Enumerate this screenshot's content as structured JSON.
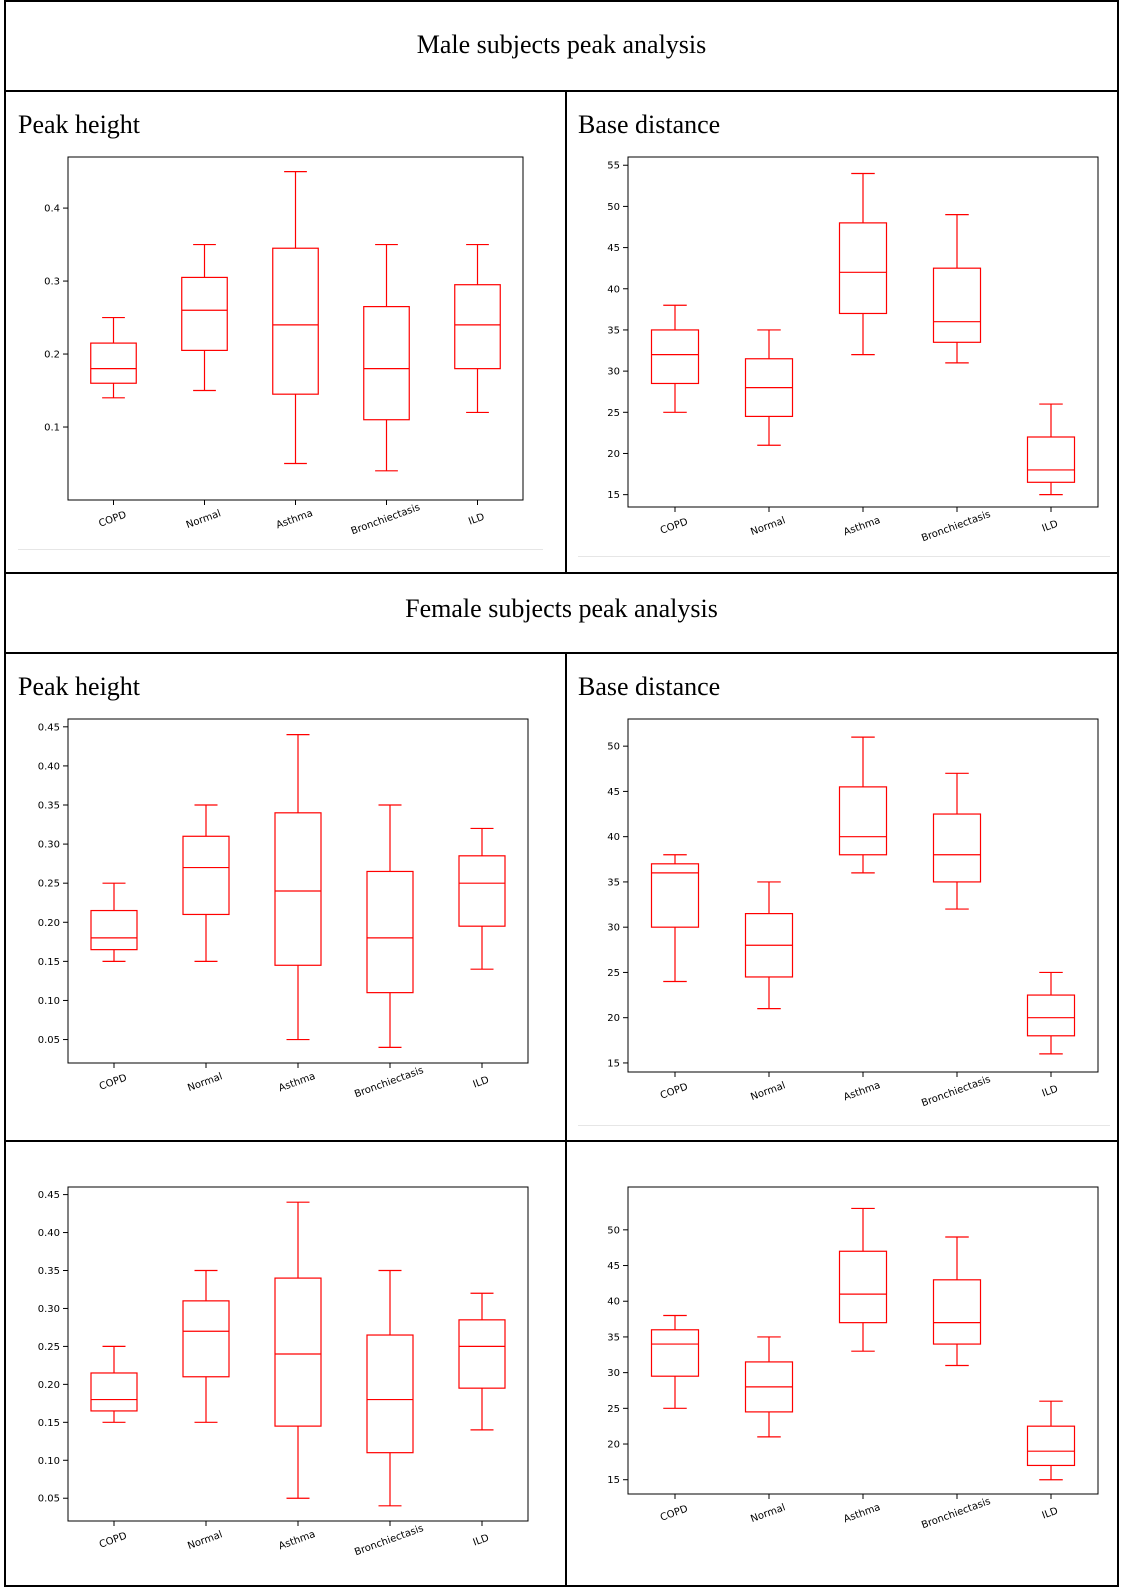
{
  "sections": {
    "male_title": "Male subjects peak analysis",
    "female_title": "Female subjects peak analysis"
  },
  "cells": {
    "male_peak_label": "Peak height",
    "male_base_label": "Base distance",
    "female_peak_label": "Peak height",
    "female_base_label": "Base distance"
  },
  "colors": {
    "box": "#ff0000",
    "axes": "#000000"
  },
  "chart_data": [
    {
      "type": "box",
      "title": "",
      "categories": [
        "COPD",
        "Normal",
        "Asthma",
        "Bronchiectasis",
        "ILD"
      ],
      "ylim": [
        0.0,
        0.47
      ],
      "yticks": [
        0.1,
        0.2,
        0.3,
        0.4
      ],
      "ytick_labels": [
        "0.1",
        "0.2",
        "0.3",
        "0.4"
      ],
      "boxes": [
        {
          "min": 0.14,
          "q1": 0.16,
          "median": 0.18,
          "q3": 0.215,
          "max": 0.25
        },
        {
          "min": 0.15,
          "q1": 0.205,
          "median": 0.26,
          "q3": 0.305,
          "max": 0.35
        },
        {
          "min": 0.05,
          "q1": 0.145,
          "median": 0.24,
          "q3": 0.345,
          "max": 0.45
        },
        {
          "min": 0.04,
          "q1": 0.11,
          "median": 0.18,
          "q3": 0.265,
          "max": 0.35
        },
        {
          "min": 0.12,
          "q1": 0.18,
          "median": 0.24,
          "q3": 0.295,
          "max": 0.35
        }
      ]
    },
    {
      "type": "box",
      "title": "",
      "categories": [
        "COPD",
        "Normal",
        "Asthma",
        "Bronchiectasis",
        "ILD"
      ],
      "ylim": [
        13.5,
        56
      ],
      "yticks": [
        15,
        20,
        25,
        30,
        35,
        40,
        45,
        50,
        55
      ],
      "ytick_labels": [
        "15",
        "20",
        "25",
        "30",
        "35",
        "40",
        "45",
        "50",
        "55"
      ],
      "boxes": [
        {
          "min": 25,
          "q1": 28.5,
          "median": 32,
          "q3": 35,
          "max": 38
        },
        {
          "min": 21,
          "q1": 24.5,
          "median": 28,
          "q3": 31.5,
          "max": 35
        },
        {
          "min": 32,
          "q1": 37,
          "median": 42,
          "q3": 48,
          "max": 54
        },
        {
          "min": 31,
          "q1": 33.5,
          "median": 36,
          "q3": 42.5,
          "max": 49
        },
        {
          "min": 15,
          "q1": 16.5,
          "median": 18,
          "q3": 22,
          "max": 26
        }
      ]
    },
    {
      "type": "box",
      "title": "",
      "categories": [
        "COPD",
        "Normal",
        "Asthma",
        "Bronchiectasis",
        "ILD"
      ],
      "ylim": [
        0.02,
        0.46
      ],
      "yticks": [
        0.05,
        0.1,
        0.15,
        0.2,
        0.25,
        0.3,
        0.35,
        0.4,
        0.45
      ],
      "ytick_labels": [
        "0.05",
        "0.10",
        "0.15",
        "0.20",
        "0.25",
        "0.30",
        "0.35",
        "0.40",
        "0.45"
      ],
      "boxes": [
        {
          "min": 0.15,
          "q1": 0.165,
          "median": 0.18,
          "q3": 0.215,
          "max": 0.25
        },
        {
          "min": 0.15,
          "q1": 0.21,
          "median": 0.27,
          "q3": 0.31,
          "max": 0.35
        },
        {
          "min": 0.05,
          "q1": 0.145,
          "median": 0.24,
          "q3": 0.34,
          "max": 0.44
        },
        {
          "min": 0.04,
          "q1": 0.11,
          "median": 0.18,
          "q3": 0.265,
          "max": 0.35
        },
        {
          "min": 0.14,
          "q1": 0.195,
          "median": 0.25,
          "q3": 0.285,
          "max": 0.32
        }
      ]
    },
    {
      "type": "box",
      "title": "",
      "categories": [
        "COPD",
        "Normal",
        "Asthma",
        "Bronchiectasis",
        "ILD"
      ],
      "ylim": [
        14,
        53
      ],
      "yticks": [
        15,
        20,
        25,
        30,
        35,
        40,
        45,
        50
      ],
      "ytick_labels": [
        "15",
        "20",
        "25",
        "30",
        "35",
        "40",
        "45",
        "50"
      ],
      "boxes": [
        {
          "min": 24,
          "q1": 30,
          "median": 36,
          "q3": 37,
          "max": 38
        },
        {
          "min": 21,
          "q1": 24.5,
          "median": 28,
          "q3": 31.5,
          "max": 35
        },
        {
          "min": 36,
          "q1": 38,
          "median": 40,
          "q3": 45.5,
          "max": 51
        },
        {
          "min": 32,
          "q1": 35,
          "median": 38,
          "q3": 42.5,
          "max": 47
        },
        {
          "min": 16,
          "q1": 18,
          "median": 20,
          "q3": 22.5,
          "max": 25
        }
      ]
    },
    {
      "type": "box",
      "title": "",
      "categories": [
        "COPD",
        "Normal",
        "Asthma",
        "Bronchiectasis",
        "ILD"
      ],
      "ylim": [
        0.02,
        0.46
      ],
      "yticks": [
        0.05,
        0.1,
        0.15,
        0.2,
        0.25,
        0.3,
        0.35,
        0.4,
        0.45
      ],
      "ytick_labels": [
        "0.05",
        "0.10",
        "0.15",
        "0.20",
        "0.25",
        "0.30",
        "0.35",
        "0.40",
        "0.45"
      ],
      "boxes": [
        {
          "min": 0.15,
          "q1": 0.165,
          "median": 0.18,
          "q3": 0.215,
          "max": 0.25
        },
        {
          "min": 0.15,
          "q1": 0.21,
          "median": 0.27,
          "q3": 0.31,
          "max": 0.35
        },
        {
          "min": 0.05,
          "q1": 0.145,
          "median": 0.24,
          "q3": 0.34,
          "max": 0.44
        },
        {
          "min": 0.04,
          "q1": 0.11,
          "median": 0.18,
          "q3": 0.265,
          "max": 0.35
        },
        {
          "min": 0.14,
          "q1": 0.195,
          "median": 0.25,
          "q3": 0.285,
          "max": 0.32
        }
      ]
    },
    {
      "type": "box",
      "title": "",
      "categories": [
        "COPD",
        "Normal",
        "Asthma",
        "Bronchiectasis",
        "ILD"
      ],
      "ylim": [
        13,
        56
      ],
      "yticks": [
        15,
        20,
        25,
        30,
        35,
        40,
        45,
        50
      ],
      "ytick_labels": [
        "15",
        "20",
        "25",
        "30",
        "35",
        "40",
        "45",
        "50"
      ],
      "boxes": [
        {
          "min": 25,
          "q1": 29.5,
          "median": 34,
          "q3": 36,
          "max": 38
        },
        {
          "min": 21,
          "q1": 24.5,
          "median": 28,
          "q3": 31.5,
          "max": 35
        },
        {
          "min": 33,
          "q1": 37,
          "median": 41,
          "q3": 47,
          "max": 53
        },
        {
          "min": 31,
          "q1": 34,
          "median": 37,
          "q3": 43,
          "max": 49
        },
        {
          "min": 15,
          "q1": 17,
          "median": 19,
          "q3": 22.5,
          "max": 26
        }
      ]
    }
  ]
}
